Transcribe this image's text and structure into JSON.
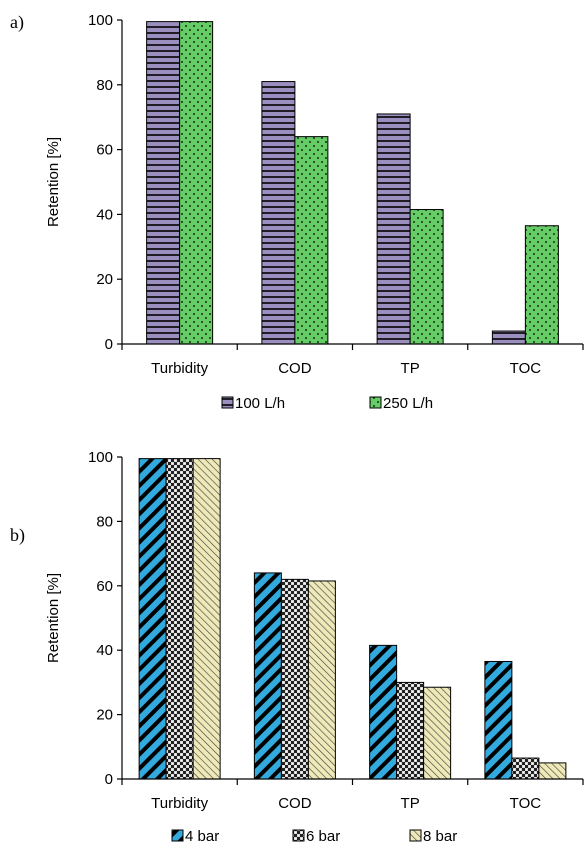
{
  "chart_data": [
    {
      "panel_label": "a)",
      "type": "bar",
      "categories": [
        "Turbidity",
        "COD",
        "TP",
        "TOC"
      ],
      "series": [
        {
          "name": "100 L/h",
          "values": [
            99.5,
            81.0,
            71.0,
            4.0
          ],
          "color": "#9b8fc0",
          "pattern": "horizontal-lines"
        },
        {
          "name": "250 L/h",
          "values": [
            99.5,
            64.0,
            41.5,
            36.5
          ],
          "color": "#66cc66",
          "pattern": "dots"
        }
      ],
      "ylabel": "Retention [%]",
      "xlabel": "",
      "ylim": [
        0,
        100
      ],
      "yticks": [
        0,
        20,
        40,
        60,
        80,
        100
      ],
      "grid": false,
      "legend": "bottom"
    },
    {
      "panel_label": "b)",
      "type": "bar",
      "categories": [
        "Turbidity",
        "COD",
        "TP",
        "TOC"
      ],
      "series": [
        {
          "name": "4 bar",
          "values": [
            99.5,
            64.0,
            41.5,
            36.5
          ],
          "color": "#33aadd",
          "pattern": "diagonal-stripes"
        },
        {
          "name": "6 bar",
          "values": [
            99.5,
            62.0,
            30.0,
            6.5
          ],
          "color": "#d0d0d0",
          "pattern": "checker"
        },
        {
          "name": "8 bar",
          "values": [
            99.5,
            61.5,
            28.5,
            5.0
          ],
          "color": "#efe9b8",
          "pattern": "thin-diagonal-lines"
        }
      ],
      "ylabel": "Retention [%]",
      "xlabel": "",
      "ylim": [
        0,
        100
      ],
      "yticks": [
        0,
        20,
        40,
        60,
        80,
        100
      ],
      "grid": false,
      "legend": "bottom"
    }
  ]
}
